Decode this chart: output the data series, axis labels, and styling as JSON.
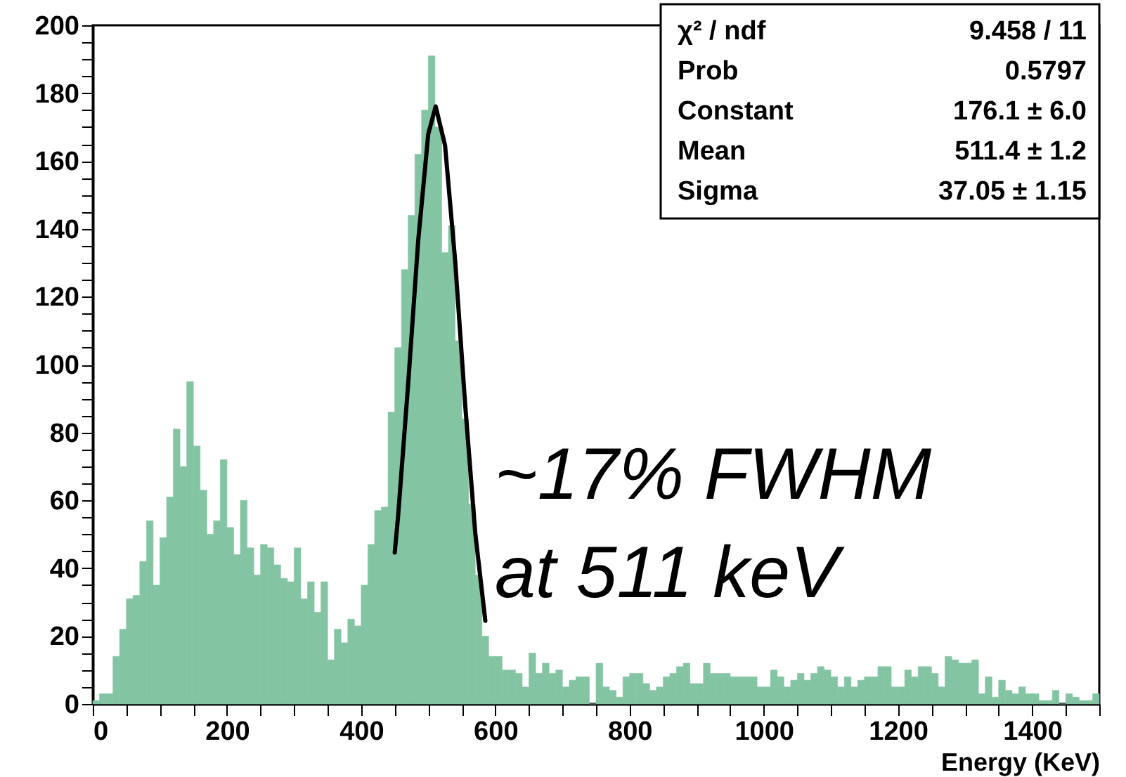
{
  "chart_data": {
    "type": "histogram",
    "xlabel": "Energy (KeV)",
    "bins": [
      0,
      10,
      20,
      30,
      40,
      50,
      60,
      70,
      80,
      90,
      100,
      110,
      120,
      130,
      140,
      150,
      160,
      170,
      180,
      190,
      200,
      210,
      220,
      230,
      240,
      250,
      260,
      270,
      280,
      290,
      300,
      310,
      320,
      330,
      340,
      350,
      360,
      370,
      380,
      390,
      400,
      410,
      420,
      430,
      440,
      450,
      460,
      470,
      480,
      490,
      500,
      510,
      520,
      530,
      540,
      550,
      560,
      570,
      580,
      590,
      600,
      610,
      620,
      630,
      640,
      650,
      660,
      670,
      680,
      690,
      700,
      710,
      720,
      730,
      740,
      750,
      760,
      770,
      780,
      790,
      800,
      810,
      820,
      830,
      840,
      850,
      860,
      870,
      880,
      890,
      900,
      910,
      920,
      930,
      940,
      950,
      960,
      970,
      980,
      990,
      1000,
      1010,
      1020,
      1030,
      1040,
      1050,
      1060,
      1070,
      1080,
      1090,
      1100,
      1110,
      1120,
      1130,
      1140,
      1150,
      1160,
      1170,
      1180,
      1190,
      1200,
      1210,
      1220,
      1230,
      1240,
      1250,
      1260,
      1270,
      1280,
      1290,
      1300,
      1310,
      1320,
      1330,
      1340,
      1350,
      1360,
      1370,
      1380,
      1390,
      1400,
      1410,
      1420,
      1430,
      1440,
      1450,
      1460,
      1470,
      1480,
      1490,
      1500
    ],
    "series": [
      {
        "color": "#83c4a3",
        "values": [
          1,
          3,
          3,
          14,
          22,
          31,
          32,
          42,
          54,
          35,
          49,
          61,
          81,
          70,
          95,
          76,
          63,
          50,
          54,
          72,
          52,
          44,
          60,
          46,
          38,
          47,
          46,
          41,
          37,
          36,
          46,
          31,
          36,
          27,
          36,
          13,
          22,
          18,
          25,
          23,
          35,
          47,
          57,
          58,
          86,
          105,
          128,
          144,
          162,
          175,
          191,
          170,
          133,
          141,
          107,
          84,
          59,
          38,
          20,
          14,
          14,
          10,
          10,
          9,
          5,
          15,
          9,
          12,
          9,
          10,
          5,
          7,
          8,
          8,
          0,
          12,
          5,
          4,
          2,
          8,
          9,
          9,
          6,
          4,
          5,
          8,
          9,
          11,
          12,
          6,
          6,
          12,
          9,
          9,
          9,
          8,
          8,
          8,
          8,
          5,
          5,
          10,
          8,
          5,
          7,
          9,
          7,
          9,
          11,
          10,
          8,
          5,
          8,
          5,
          7,
          8,
          8,
          11,
          11,
          5,
          5,
          10,
          8,
          11,
          11,
          9,
          5,
          14,
          13,
          12,
          12,
          13,
          3,
          8,
          2,
          7,
          4,
          3,
          5,
          3,
          3,
          1,
          1,
          4,
          0,
          3,
          2,
          1,
          1,
          3
        ]
      },
      {
        "type": "line",
        "color": "#000000",
        "x": [
          450,
          455,
          470,
          485,
          500,
          511,
          525,
          540,
          555,
          570,
          585
        ],
        "values": [
          44.6,
          55.3,
          94.3,
          136.6,
          168.0,
          176.1,
          164.6,
          130.7,
          88.1,
          50.4,
          24.5
        ]
      }
    ],
    "xlim": [
      0,
      1500
    ],
    "xticks": [
      0,
      {
        "value": 50,
        "label": null
      },
      {
        "value": 100,
        "label": null
      },
      {
        "value": 150,
        "label": null
      },
      200,
      {
        "value": 250,
        "label": null
      },
      {
        "value": 300,
        "label": null
      },
      {
        "value": 350,
        "label": null
      },
      400,
      {
        "value": 450,
        "label": null
      },
      {
        "value": 500,
        "label": null
      },
      {
        "value": 550,
        "label": null
      },
      600,
      {
        "value": 650,
        "label": null
      },
      {
        "value": 700,
        "label": null
      },
      {
        "value": 750,
        "label": null
      },
      800,
      {
        "value": 850,
        "label": null
      },
      {
        "value": 900,
        "label": null
      },
      {
        "value": 950,
        "label": null
      },
      1000,
      {
        "value": 1050,
        "label": null
      },
      {
        "value": 1100,
        "label": null
      },
      {
        "value": 1150,
        "label": null
      },
      1200,
      {
        "value": 1250,
        "label": null
      },
      {
        "value": 1300,
        "label": null
      },
      {
        "value": 1350,
        "label": null
      },
      1400,
      {
        "value": 1450,
        "label": null
      },
      {
        "value": 1500,
        "label": null
      }
    ],
    "ylim": [
      0,
      200
    ],
    "yticks": [
      0,
      {
        "value": 5,
        "label": null
      },
      {
        "value": 10,
        "label": null
      },
      {
        "value": 15,
        "label": null
      },
      20,
      {
        "value": 25,
        "label": null
      },
      {
        "value": 30,
        "label": null
      },
      {
        "value": 35,
        "label": null
      },
      40,
      {
        "value": 45,
        "label": null
      },
      {
        "value": 50,
        "label": null
      },
      {
        "value": 55,
        "label": null
      },
      60,
      {
        "value": 65,
        "label": null
      },
      {
        "value": 70,
        "label": null
      },
      {
        "value": 75,
        "label": null
      },
      80,
      {
        "value": 85,
        "label": null
      },
      {
        "value": 90,
        "label": null
      },
      {
        "value": 95,
        "label": null
      },
      100,
      {
        "value": 105,
        "label": null
      },
      {
        "value": 110,
        "label": null
      },
      {
        "value": 115,
        "label": null
      },
      120,
      {
        "value": 125,
        "label": null
      },
      {
        "value": 130,
        "label": null
      },
      {
        "value": 135,
        "label": null
      },
      140,
      {
        "value": 145,
        "label": null
      },
      {
        "value": 150,
        "label": null
      },
      {
        "value": 155,
        "label": null
      },
      160,
      {
        "value": 165,
        "label": null
      },
      {
        "value": 170,
        "label": null
      },
      {
        "value": 175,
        "label": null
      },
      180,
      {
        "value": 185,
        "label": null
      },
      {
        "value": 190,
        "label": null
      },
      {
        "value": 195,
        "label": null
      },
      200
    ],
    "grid": false,
    "annotations": [
      "χ² / ndf",
      "9.458 / 11",
      "Prob",
      "0.5797",
      "Constant",
      "176.1 ± 6.0",
      "Mean",
      "511.4 ± 1.2",
      "Sigma",
      "37.05 ± 1.15",
      "~17% FWHM",
      "at 511 keV"
    ]
  }
}
